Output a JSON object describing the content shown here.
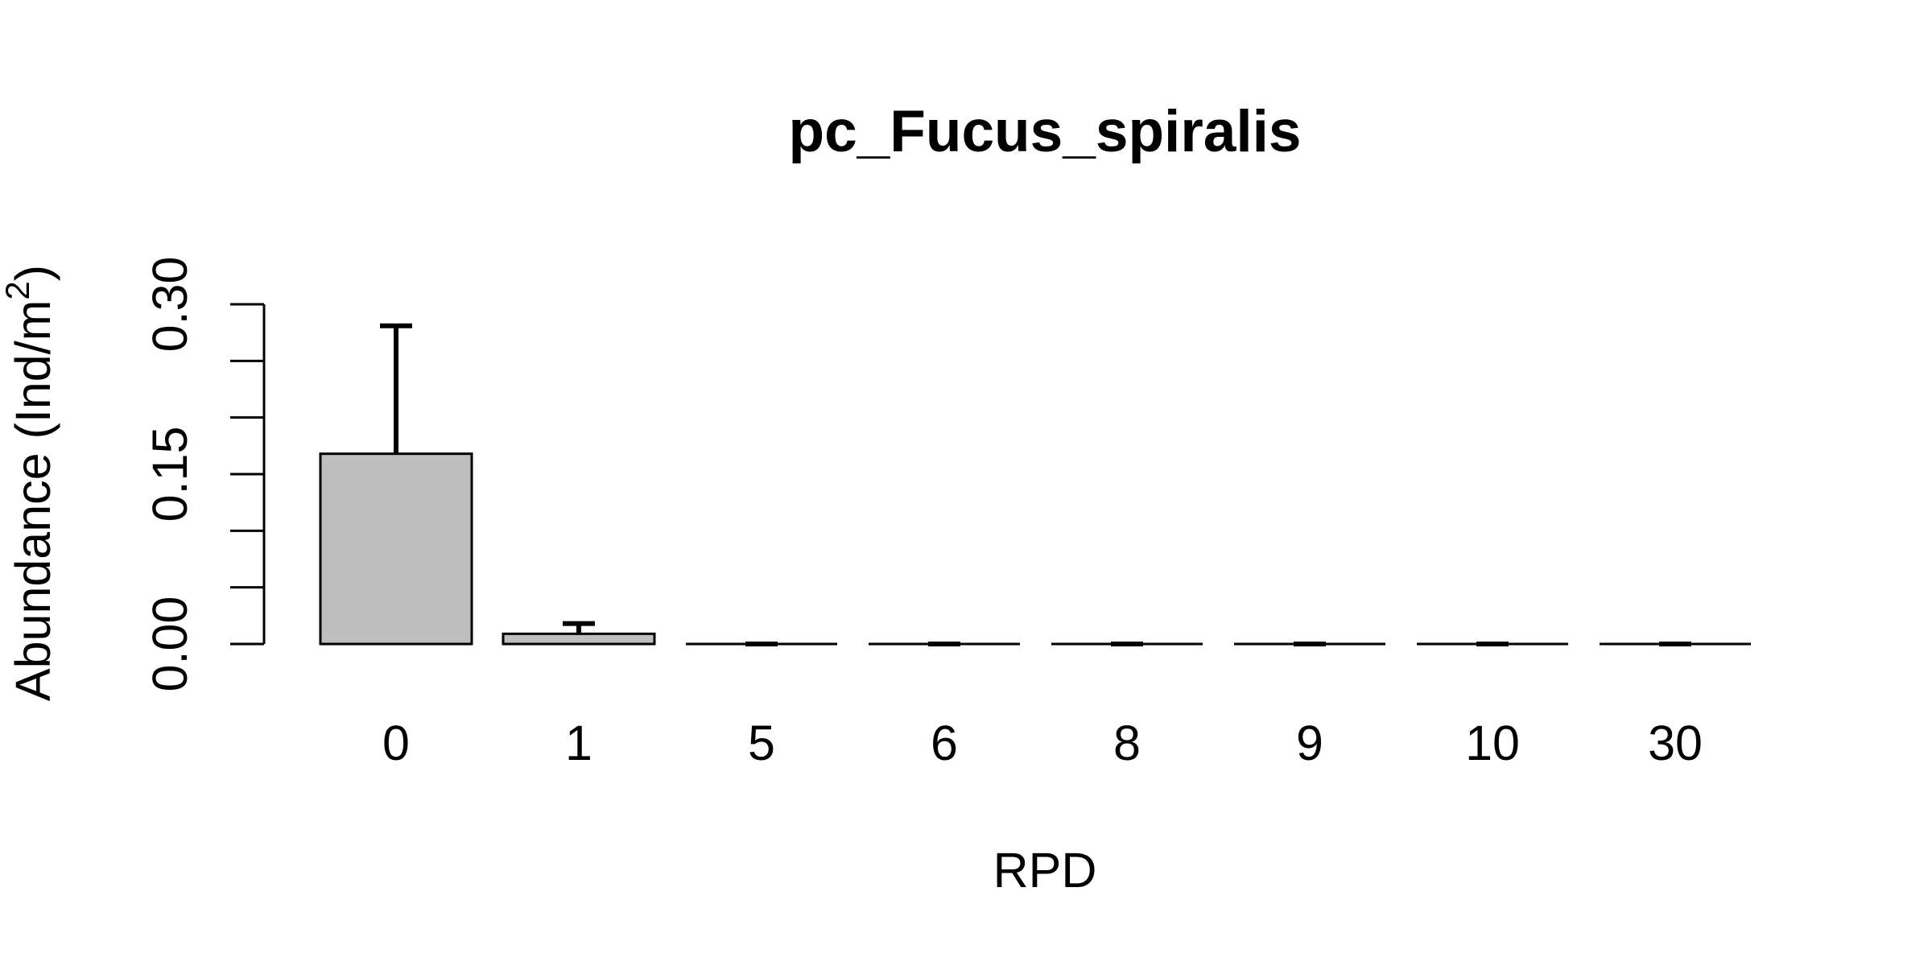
{
  "chart_data": {
    "type": "bar",
    "title": "pc_Fucus_spiralis",
    "xlabel": "RPD",
    "ylabel": "Abundance (Ind/m",
    "ylabel_superscript": "2",
    "ylabel_suffix": ")",
    "categories": [
      "0",
      "1",
      "5",
      "6",
      "8",
      "9",
      "10",
      "30"
    ],
    "values": [
      0.168,
      0.009,
      0,
      0,
      0,
      0,
      0,
      0
    ],
    "error_upper": [
      0.281,
      0.018,
      0,
      0,
      0,
      0,
      0,
      0
    ],
    "ylim": [
      0,
      0.3
    ],
    "yticks": [
      0,
      0.05,
      0.1,
      0.15,
      0.2,
      0.25,
      0.3
    ],
    "ytick_labels": [
      "0.00",
      "",
      "",
      "0.15",
      "",
      "",
      "0.30"
    ],
    "bar_color": "#bebebe",
    "line_color": "#000000",
    "grid": false,
    "legend": "none"
  }
}
